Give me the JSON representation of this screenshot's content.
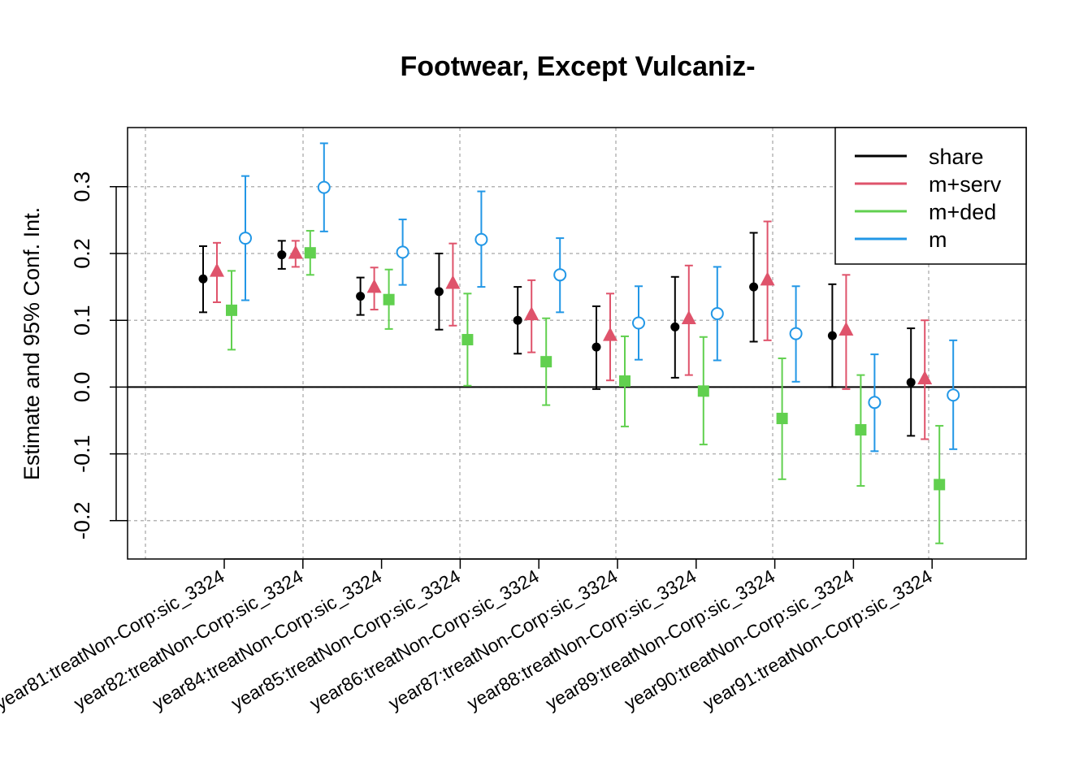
{
  "chart_data": {
    "type": "errorbar",
    "title": "Footwear, Except Vulcaniz-",
    "xlabel": "",
    "ylabel": "Estimate and 95% Conf. Int.",
    "ylim": [
      -0.255,
      0.39
    ],
    "yticks": [
      -0.2,
      -0.1,
      0.0,
      0.1,
      0.2,
      0.3
    ],
    "ytick_labels": [
      "-0.2",
      "-0.1",
      "0.0",
      "0.1",
      "0.2",
      "0.3"
    ],
    "grid": true,
    "legend_position": "top-right",
    "categories": [
      "year81:treatNon-Corp:sic_3324",
      "year82:treatNon-Corp:sic_3324",
      "year84:treatNon-Corp:sic_3324",
      "year85:treatNon-Corp:sic_3324",
      "year86:treatNon-Corp:sic_3324",
      "year87:treatNon-Corp:sic_3324",
      "year88:treatNon-Corp:sic_3324",
      "year89:treatNon-Corp:sic_3324",
      "year90:treatNon-Corp:sic_3324",
      "year91:treatNon-Corp:sic_3324"
    ],
    "series": [
      {
        "name": "share",
        "color": "#000000",
        "marker": "filled-circle",
        "estimate": [
          0.162,
          0.198,
          0.136,
          0.143,
          0.1,
          0.06,
          0.09,
          0.15,
          0.077,
          0.007
        ],
        "lower": [
          0.112,
          0.177,
          0.108,
          0.086,
          0.05,
          -0.003,
          0.014,
          0.068,
          0.0,
          -0.073
        ],
        "upper": [
          0.211,
          0.219,
          0.164,
          0.2,
          0.15,
          0.121,
          0.165,
          0.231,
          0.154,
          0.088
        ]
      },
      {
        "name": "m+serv",
        "color": "#DF536B",
        "marker": "filled-triangle",
        "estimate": [
          0.173,
          0.2,
          0.149,
          0.155,
          0.108,
          0.077,
          0.102,
          0.16,
          0.085,
          0.012
        ],
        "lower": [
          0.127,
          0.18,
          0.116,
          0.092,
          0.052,
          0.01,
          0.018,
          0.07,
          -0.003,
          -0.078
        ],
        "upper": [
          0.216,
          0.219,
          0.179,
          0.215,
          0.16,
          0.14,
          0.182,
          0.248,
          0.168,
          0.1
        ]
      },
      {
        "name": "m+ded",
        "color": "#61D04F",
        "marker": "filled-square",
        "estimate": [
          0.115,
          0.201,
          0.131,
          0.071,
          0.038,
          0.009,
          -0.006,
          -0.047,
          -0.064,
          -0.146
        ],
        "lower": [
          0.056,
          0.168,
          0.087,
          0.002,
          -0.027,
          -0.059,
          -0.086,
          -0.138,
          -0.148,
          -0.234
        ],
        "upper": [
          0.174,
          0.234,
          0.176,
          0.14,
          0.103,
          0.076,
          0.075,
          0.043,
          0.018,
          -0.058
        ]
      },
      {
        "name": "m",
        "color": "#2297E6",
        "marker": "open-circle",
        "estimate": [
          0.223,
          0.299,
          0.202,
          0.221,
          0.168,
          0.096,
          0.11,
          0.08,
          -0.023,
          -0.012
        ],
        "lower": [
          0.13,
          0.233,
          0.153,
          0.15,
          0.112,
          0.041,
          0.04,
          0.008,
          -0.096,
          -0.093
        ],
        "upper": [
          0.316,
          0.365,
          0.251,
          0.293,
          0.223,
          0.151,
          0.18,
          0.151,
          0.049,
          0.07
        ]
      }
    ]
  }
}
